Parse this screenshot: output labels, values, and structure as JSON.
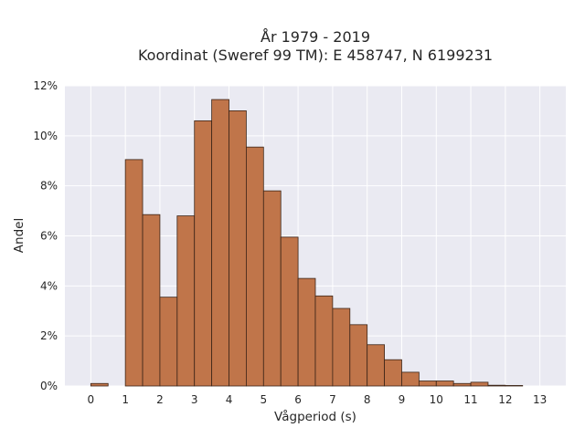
{
  "chart_data": {
    "type": "bar",
    "title_lines": [
      "År 1979 - 2019",
      "Koordinat (Sweref 99 TM): E 458747, N 6199231"
    ],
    "xlabel": "Vågperiod (s)",
    "ylabel": "Andel",
    "xlim": [
      -0.75,
      13.75
    ],
    "ylim": [
      0,
      12
    ],
    "x_ticks": [
      0,
      1,
      2,
      3,
      4,
      5,
      6,
      7,
      8,
      9,
      10,
      11,
      12,
      13
    ],
    "y_ticks": [
      0,
      2,
      4,
      6,
      8,
      10,
      12
    ],
    "y_tick_labels": [
      "0%",
      "2%",
      "4%",
      "6%",
      "8%",
      "10%",
      "12%"
    ],
    "bin_width": 0.5,
    "bins": [
      {
        "start": 0.0,
        "value": 0.1
      },
      {
        "start": 1.0,
        "value": 9.05
      },
      {
        "start": 1.5,
        "value": 6.85
      },
      {
        "start": 2.0,
        "value": 3.55
      },
      {
        "start": 2.5,
        "value": 6.8
      },
      {
        "start": 3.0,
        "value": 10.6
      },
      {
        "start": 3.5,
        "value": 11.45
      },
      {
        "start": 4.0,
        "value": 11.0
      },
      {
        "start": 4.5,
        "value": 9.55
      },
      {
        "start": 5.0,
        "value": 7.8
      },
      {
        "start": 5.5,
        "value": 5.95
      },
      {
        "start": 6.0,
        "value": 4.3
      },
      {
        "start": 6.5,
        "value": 3.6
      },
      {
        "start": 7.0,
        "value": 3.1
      },
      {
        "start": 7.5,
        "value": 2.45
      },
      {
        "start": 8.0,
        "value": 1.65
      },
      {
        "start": 8.5,
        "value": 1.05
      },
      {
        "start": 9.0,
        "value": 0.55
      },
      {
        "start": 9.5,
        "value": 0.2
      },
      {
        "start": 10.0,
        "value": 0.2
      },
      {
        "start": 10.5,
        "value": 0.1
      },
      {
        "start": 11.0,
        "value": 0.15
      },
      {
        "start": 11.5,
        "value": 0.03
      },
      {
        "start": 12.0,
        "value": 0.02
      }
    ],
    "grid": true,
    "colors": {
      "bar": "#c0754a",
      "edge": "#3b2417",
      "background": "#eaeaf2",
      "grid": "#ffffff"
    }
  }
}
